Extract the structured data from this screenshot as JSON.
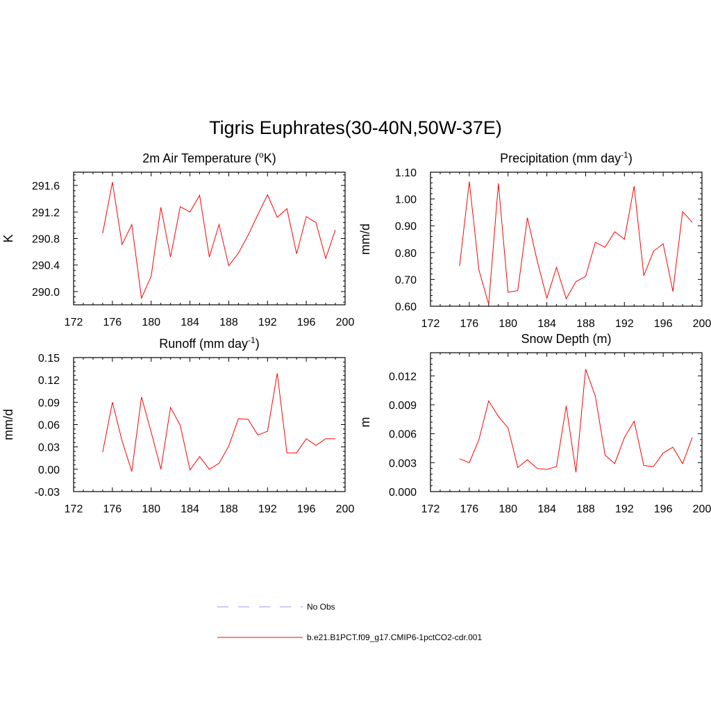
{
  "figure": {
    "title": "Tigris Euphrates(30-40N,50W-37E)",
    "legend": [
      {
        "label": "No Obs",
        "color": "#9a9aee",
        "dash": true
      },
      {
        "label": "b.e21.B1PCT.f09_g17.CMIP6-1pctCO2-cdr.001",
        "color": "#ff0000",
        "dash": false
      }
    ]
  },
  "chart_data": [
    {
      "type": "line",
      "title": "2m Air Temperature (",
      "title_sup": "o",
      "title_after": "K)",
      "ylabel": "K",
      "xlim": [
        172,
        200
      ],
      "ylim": [
        289.8,
        291.8
      ],
      "xticks": [
        "172",
        "176",
        "180",
        "184",
        "188",
        "192",
        "196",
        "200"
      ],
      "yticks": [
        "290.0",
        "290.4",
        "290.8",
        "291.2",
        "291.6"
      ],
      "color": "#ff0000",
      "x": [
        175,
        176,
        177,
        178,
        179,
        180,
        181,
        182,
        183,
        184,
        185,
        186,
        187,
        188,
        189,
        190,
        191,
        192,
        193,
        194,
        195,
        196,
        197,
        198,
        199
      ],
      "y": [
        290.88,
        291.65,
        290.71,
        291.01,
        289.9,
        290.23,
        291.27,
        290.52,
        291.28,
        291.2,
        291.45,
        290.52,
        291.01,
        290.39,
        290.58,
        290.85,
        291.16,
        291.46,
        291.12,
        291.25,
        290.57,
        291.13,
        291.04,
        290.5,
        290.93
      ]
    },
    {
      "type": "line",
      "title": "Precipitation (mm day",
      "title_sup": "-1",
      "title_after": ")",
      "ylabel": "mm/d",
      "xlim": [
        172,
        200
      ],
      "ylim": [
        0.6,
        1.1
      ],
      "xticks": [
        "172",
        "176",
        "180",
        "184",
        "188",
        "192",
        "196",
        "200"
      ],
      "yticks": [
        "0.60",
        "0.70",
        "0.80",
        "0.90",
        "1.00",
        "1.10"
      ],
      "color": "#ff0000",
      "x": [
        175,
        176,
        177,
        178,
        179,
        180,
        181,
        182,
        183,
        184,
        185,
        186,
        187,
        188,
        189,
        190,
        191,
        192,
        193,
        194,
        195,
        196,
        197,
        198,
        199
      ],
      "y": [
        0.75,
        1.065,
        0.735,
        0.607,
        1.058,
        0.652,
        0.658,
        0.93,
        0.77,
        0.63,
        0.745,
        0.628,
        0.692,
        0.711,
        0.838,
        0.82,
        0.878,
        0.85,
        1.048,
        0.714,
        0.805,
        0.833,
        0.655,
        0.953,
        0.913
      ]
    },
    {
      "type": "line",
      "title": "Runoff (mm day",
      "title_sup": "-1",
      "title_after": ")",
      "ylabel": "mm/d",
      "xlim": [
        172,
        200
      ],
      "ylim": [
        -0.03,
        0.15
      ],
      "xticks": [
        "172",
        "176",
        "180",
        "184",
        "188",
        "192",
        "196",
        "200"
      ],
      "yticks": [
        "-0.03",
        "0.00",
        "0.03",
        "0.06",
        "0.09",
        "0.12",
        "0.15"
      ],
      "color": "#ff0000",
      "x": [
        175,
        176,
        177,
        178,
        179,
        180,
        181,
        182,
        183,
        184,
        185,
        186,
        187,
        188,
        189,
        190,
        191,
        192,
        193,
        194,
        195,
        196,
        197,
        198,
        199
      ],
      "y": [
        0.023,
        0.09,
        0.038,
        -0.003,
        0.097,
        0.05,
        0.0,
        0.083,
        0.059,
        -0.001,
        0.017,
        0.0,
        0.008,
        0.031,
        0.068,
        0.067,
        0.046,
        0.051,
        0.129,
        0.022,
        0.022,
        0.041,
        0.032,
        0.041,
        0.041
      ]
    },
    {
      "type": "line",
      "title": "Snow Depth (m)",
      "title_sup": "",
      "title_after": "",
      "ylabel": "m",
      "xlim": [
        172,
        200
      ],
      "ylim": [
        0.0,
        0.0144
      ],
      "xticks": [
        "172",
        "176",
        "180",
        "184",
        "188",
        "192",
        "196",
        "200"
      ],
      "yticks": [
        "0.000",
        "0.003",
        "0.006",
        "0.009",
        "0.012"
      ],
      "color": "#ff0000",
      "x": [
        175,
        176,
        177,
        178,
        179,
        180,
        181,
        182,
        183,
        184,
        185,
        186,
        187,
        188,
        189,
        190,
        191,
        192,
        193,
        194,
        195,
        196,
        197,
        198,
        199
      ],
      "y": [
        0.0034,
        0.003,
        0.0054,
        0.0094,
        0.0078,
        0.0066,
        0.0025,
        0.0033,
        0.0024,
        0.0023,
        0.0026,
        0.0089,
        0.002,
        0.0127,
        0.0099,
        0.0038,
        0.0029,
        0.0056,
        0.0073,
        0.0027,
        0.0026,
        0.004,
        0.0046,
        0.0029,
        0.0056
      ]
    }
  ]
}
